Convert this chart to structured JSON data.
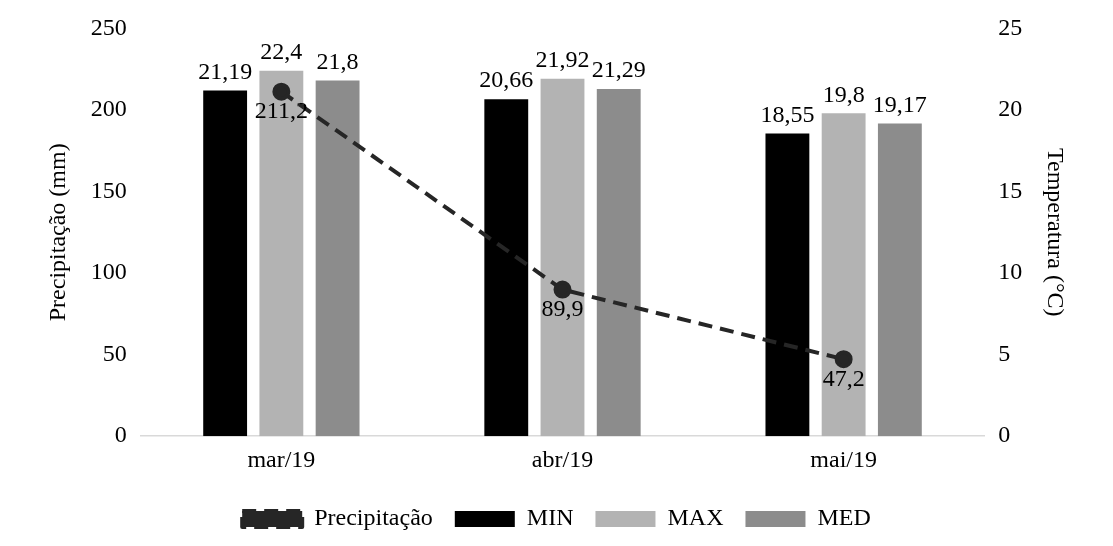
{
  "chart_data": {
    "type": "bar",
    "categories": [
      "mar/19",
      "abr/19",
      "mai/19"
    ],
    "ylabel": "Precipitação (mm)",
    "y2label": "Temperatura (°C)",
    "ylim": [
      0,
      250
    ],
    "yticks": [
      0,
      50,
      100,
      150,
      200,
      250
    ],
    "y2lim": [
      0,
      25
    ],
    "y2ticks": [
      0,
      5,
      10,
      15,
      20,
      25
    ],
    "legend": "bottom",
    "grid": false,
    "marker": "circle",
    "line_style": "dashed",
    "series": [
      {
        "name": "MIN",
        "color": "#000000",
        "axis": "y2",
        "values": [
          21.19,
          20.66,
          18.55
        ],
        "value_labels": [
          "21,19",
          "20,66",
          "18,55"
        ]
      },
      {
        "name": "MAX",
        "color": "#b3b3b3",
        "axis": "y2",
        "values": [
          22.4,
          21.92,
          19.8
        ],
        "value_labels": [
          "22,4",
          "21,92",
          "19,8"
        ]
      },
      {
        "name": "MED",
        "color": "#8c8c8c",
        "axis": "y2",
        "values": [
          21.8,
          21.29,
          19.17
        ],
        "value_labels": [
          "21,8",
          "21,29",
          "19,17"
        ]
      },
      {
        "name": "Precipitação",
        "type": "line",
        "color": "#262626",
        "values": [
          211.2,
          89.9,
          47.2
        ],
        "value_labels": [
          "211,2",
          "89,9",
          "47,2"
        ]
      }
    ]
  }
}
